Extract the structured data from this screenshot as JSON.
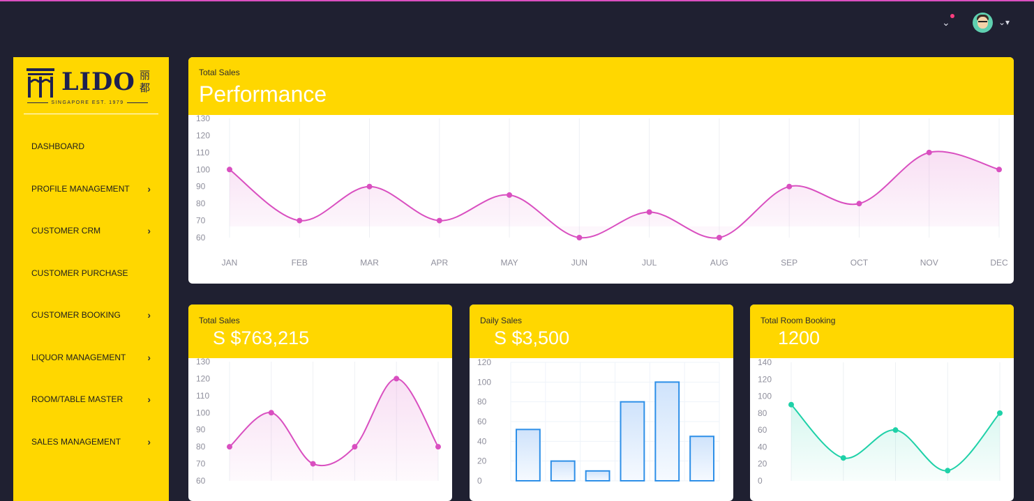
{
  "header": {
    "notification_icon": "chevron-down-icon",
    "notification_dot_color": "#ff3d7f",
    "avatar_icon": "user-avatar-icon",
    "avatar_caret_icon": "caret-down-icon"
  },
  "sidebar": {
    "logo": {
      "brand": "LIDO",
      "chinese": "丽都",
      "tagline": "SINGAPORE EST. 1979"
    },
    "items": [
      {
        "label": "DASHBOARD",
        "has_submenu": false
      },
      {
        "label": "PROFILE MANAGEMENT",
        "has_submenu": true
      },
      {
        "label": "CUSTOMER CRM",
        "has_submenu": true
      },
      {
        "label": "CUSTOMER PURCHASE",
        "has_submenu": false
      },
      {
        "label": "CUSTOMER BOOKING",
        "has_submenu": true
      },
      {
        "label": "LIQUOR MANAGEMENT",
        "has_submenu": true
      },
      {
        "label": "ROOM/TABLE MASTER",
        "has_submenu": true
      },
      {
        "label": "SALES MANAGEMENT",
        "has_submenu": true
      }
    ]
  },
  "colors": {
    "accent": "#ffd700",
    "background": "#1f2031",
    "line_pink": "#d94fc0",
    "bar_blue": "#2d8fe8",
    "line_teal": "#1fd1a8"
  },
  "cards": {
    "performance": {
      "label": "Total Sales",
      "title": "Performance"
    },
    "total_sales": {
      "label": "Total Sales",
      "value": "S $763,215"
    },
    "daily_sales": {
      "label": "Daily Sales",
      "value": "S $3,500"
    },
    "room_booking": {
      "label": "Total Room Booking",
      "value": "1200"
    }
  },
  "chart_data": [
    {
      "type": "line",
      "x": [
        "JAN",
        "FEB",
        "MAR",
        "APR",
        "MAY",
        "JUN",
        "JUL",
        "AUG",
        "SEP",
        "OCT",
        "NOV",
        "DEC"
      ],
      "values": [
        100,
        70,
        90,
        70,
        85,
        60,
        75,
        60,
        90,
        80,
        110,
        100
      ],
      "ylim": [
        60,
        130
      ],
      "yticks": [
        60,
        70,
        80,
        90,
        100,
        110,
        120,
        130
      ],
      "color": "#d94fc0"
    },
    {
      "type": "line",
      "values": [
        80,
        100,
        70,
        80,
        120,
        80
      ],
      "ylim": [
        60,
        130
      ],
      "yticks": [
        60,
        70,
        80,
        90,
        100,
        110,
        120,
        130
      ],
      "color": "#d94fc0"
    },
    {
      "type": "bar",
      "values": [
        52,
        20,
        10,
        80,
        100,
        45
      ],
      "ylim": [
        0,
        120
      ],
      "yticks": [
        0,
        20,
        40,
        60,
        80,
        100,
        120
      ],
      "color": "#2d8fe8"
    },
    {
      "type": "line",
      "values": [
        90,
        27,
        60,
        12,
        80
      ],
      "ylim": [
        0,
        140
      ],
      "yticks": [
        0,
        20,
        40,
        60,
        80,
        100,
        120,
        140
      ],
      "color": "#1fd1a8"
    }
  ]
}
